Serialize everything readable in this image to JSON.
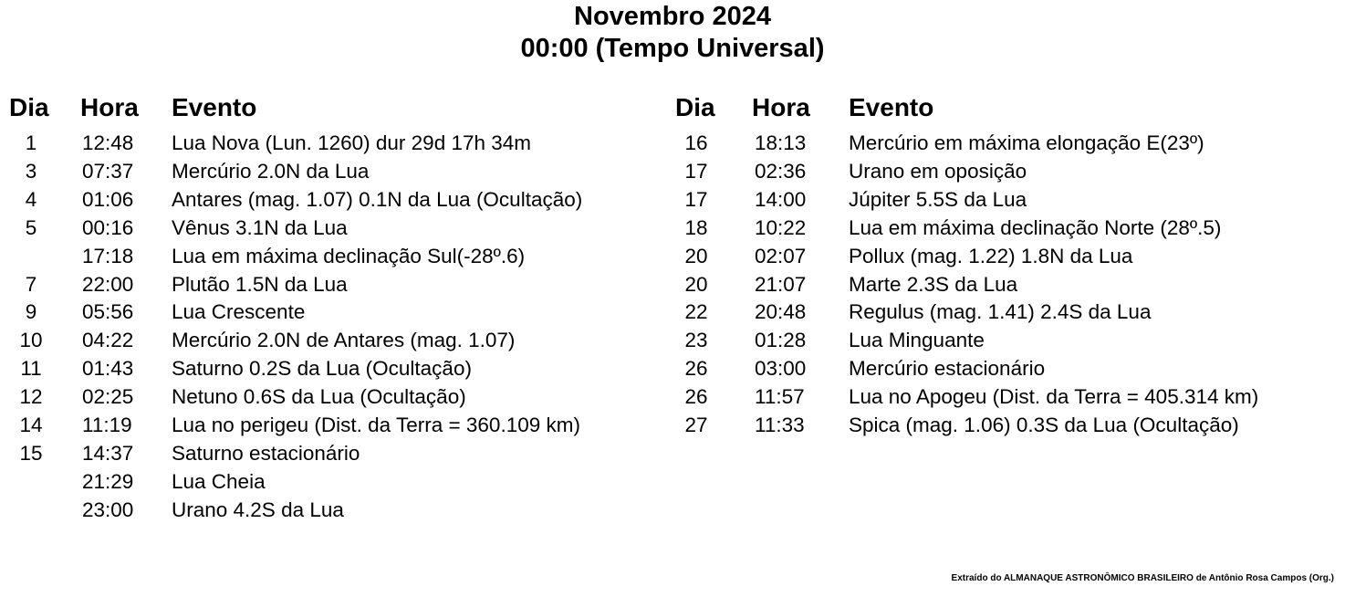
{
  "title": "Novembro 2024",
  "subtitle": "00:00 (Tempo Universal)",
  "headers": {
    "dia": "Dia",
    "hora": "Hora",
    "evento": "Evento"
  },
  "left": [
    {
      "dia": "1",
      "hora": "12:48",
      "evento": "Lua Nova (Lun. 1260) dur 29d 17h 34m"
    },
    {
      "dia": "3",
      "hora": "07:37",
      "evento": "Mercúrio 2.0N da Lua"
    },
    {
      "dia": "4",
      "hora": "01:06",
      "evento": "Antares (mag. 1.07) 0.1N da Lua (Ocultação)"
    },
    {
      "dia": "5",
      "hora": "00:16",
      "evento": "Vênus 3.1N da Lua"
    },
    {
      "dia": "",
      "hora": "17:18",
      "evento": "Lua em máxima declinação Sul(-28º.6)"
    },
    {
      "dia": "7",
      "hora": "22:00",
      "evento": "Plutão 1.5N da Lua"
    },
    {
      "dia": "9",
      "hora": "05:56",
      "evento": "Lua Crescente"
    },
    {
      "dia": "10",
      "hora": "04:22",
      "evento": "Mercúrio 2.0N de Antares (mag. 1.07)"
    },
    {
      "dia": "11",
      "hora": "01:43",
      "evento": "Saturno 0.2S da Lua (Ocultação)"
    },
    {
      "dia": "12",
      "hora": "02:25",
      "evento": "Netuno 0.6S da Lua (Ocultação)"
    },
    {
      "dia": "14",
      "hora": "11:19",
      "evento": "Lua no perigeu (Dist. da Terra = 360.109 km)"
    },
    {
      "dia": "15",
      "hora": "14:37",
      "evento": "Saturno estacionário"
    },
    {
      "dia": "",
      "hora": "21:29",
      "evento": "Lua Cheia"
    },
    {
      "dia": "",
      "hora": "23:00",
      "evento": "Urano 4.2S da Lua"
    }
  ],
  "right": [
    {
      "dia": "16",
      "hora": "18:13",
      "evento": "Mercúrio em máxima elongação E(23º)"
    },
    {
      "dia": "17",
      "hora": "02:36",
      "evento": "Urano em oposição"
    },
    {
      "dia": "17",
      "hora": "14:00",
      "evento": "Júpiter 5.5S da Lua"
    },
    {
      "dia": "18",
      "hora": "10:22",
      "evento": "Lua em máxima declinação Norte (28º.5)"
    },
    {
      "dia": "20",
      "hora": "02:07",
      "evento": "Pollux (mag. 1.22) 1.8N da Lua"
    },
    {
      "dia": "20",
      "hora": "21:07",
      "evento": "Marte 2.3S da Lua"
    },
    {
      "dia": "22",
      "hora": "20:48",
      "evento": "Regulus (mag. 1.41) 2.4S da Lua"
    },
    {
      "dia": "23",
      "hora": "01:28",
      "evento": "Lua Minguante"
    },
    {
      "dia": "26",
      "hora": "03:00",
      "evento": "Mercúrio estacionário"
    },
    {
      "dia": "26",
      "hora": "11:57",
      "evento": "Lua no Apogeu (Dist. da Terra = 405.314 km)"
    },
    {
      "dia": "27",
      "hora": "11:33",
      "evento": "Spica (mag. 1.06) 0.3S da Lua (Ocultação)"
    }
  ],
  "footer": "Extraído do ALMANAQUE ASTRONÔMICO BRASILEIRO de Antônio Rosa Campos (Org.)"
}
